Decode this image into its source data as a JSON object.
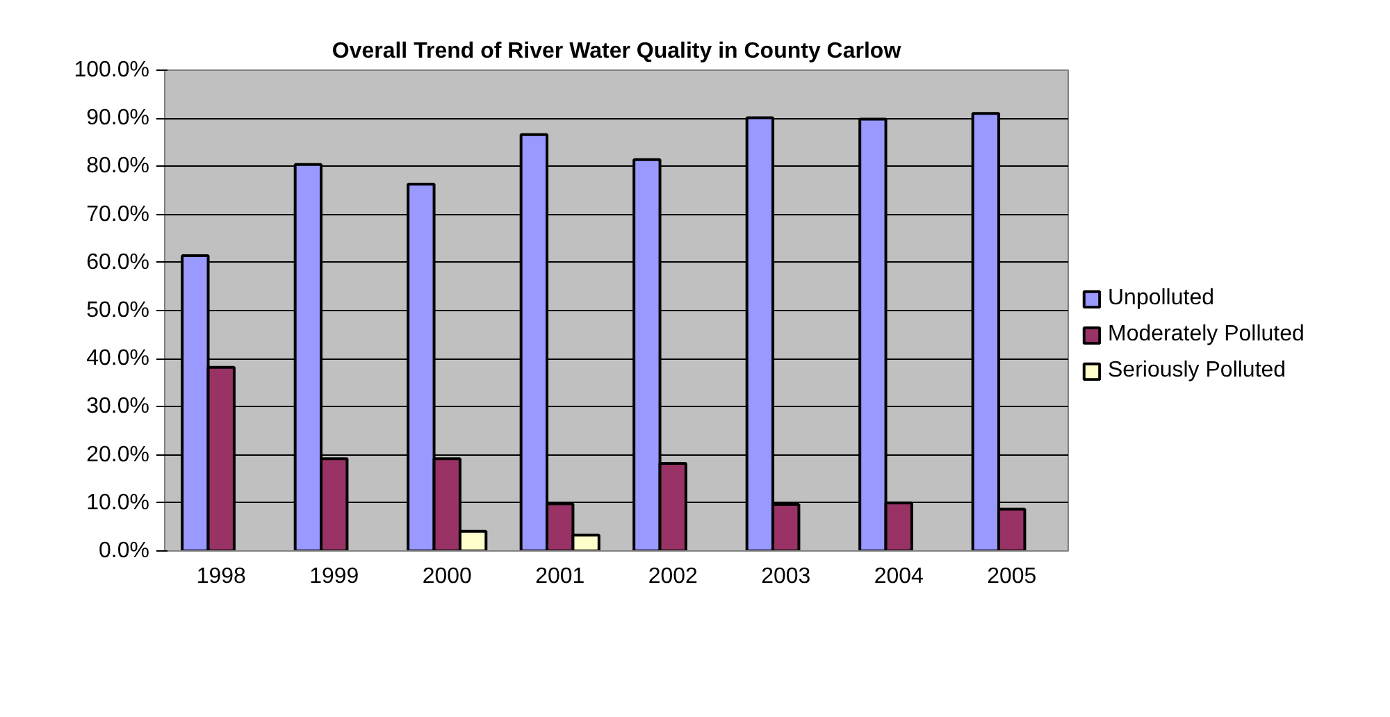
{
  "chart_data": {
    "type": "bar",
    "title": "Overall Trend of River Water Quality in County Carlow",
    "categories": [
      "1998",
      "1999",
      "2000",
      "2001",
      "2002",
      "2003",
      "2004",
      "2005"
    ],
    "series": [
      {
        "name": "Unpolluted",
        "color": "#9999ff",
        "values": [
          61.4,
          80.4,
          76.3,
          86.6,
          81.4,
          90.1,
          89.8,
          91.0
        ]
      },
      {
        "name": "Moderately Polluted",
        "color": "#993366",
        "values": [
          38.2,
          19.2,
          19.2,
          9.8,
          18.2,
          9.7,
          10.0,
          8.7
        ]
      },
      {
        "name": "Seriously Polluted",
        "color": "#ffffcc",
        "values": [
          null,
          null,
          4.1,
          3.3,
          null,
          null,
          null,
          null
        ]
      }
    ],
    "ylim": [
      0,
      100
    ],
    "yticks": [
      {
        "value": 0,
        "label": "0.0%"
      },
      {
        "value": 10,
        "label": "10.0%"
      },
      {
        "value": 20,
        "label": "20.0%"
      },
      {
        "value": 30,
        "label": "30.0%"
      },
      {
        "value": 40,
        "label": "40.0%"
      },
      {
        "value": 50,
        "label": "50.0%"
      },
      {
        "value": 60,
        "label": "60.0%"
      },
      {
        "value": 70,
        "label": "70.0%"
      },
      {
        "value": 80,
        "label": "80.0%"
      },
      {
        "value": 90,
        "label": "90.0%"
      },
      {
        "value": 100,
        "label": "100.0%"
      }
    ],
    "grid": "y",
    "legend": "right"
  }
}
